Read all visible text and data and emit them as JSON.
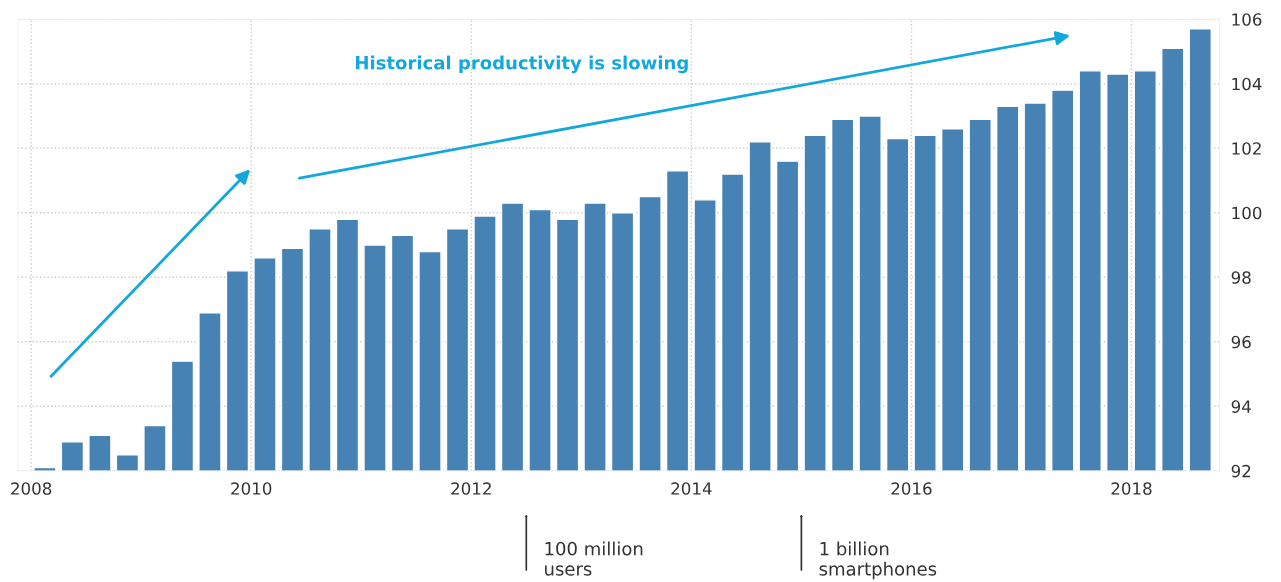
{
  "chart_data": {
    "type": "bar",
    "x": [
      2008.125,
      2008.375,
      2008.625,
      2008.875,
      2009.125,
      2009.375,
      2009.625,
      2009.875,
      2010.125,
      2010.375,
      2010.625,
      2010.875,
      2011.125,
      2011.375,
      2011.625,
      2011.875,
      2012.125,
      2012.375,
      2012.625,
      2012.875,
      2013.125,
      2013.375,
      2013.625,
      2013.875,
      2014.125,
      2014.375,
      2014.625,
      2014.875,
      2015.125,
      2015.375,
      2015.625,
      2015.875,
      2016.125,
      2016.375,
      2016.625,
      2016.875,
      2017.125,
      2017.375,
      2017.625,
      2017.875,
      2018.125,
      2018.375,
      2018.625
    ],
    "values": [
      92.1,
      92.9,
      93.1,
      92.5,
      93.4,
      95.4,
      96.9,
      98.2,
      98.6,
      98.9,
      99.5,
      99.8,
      99.0,
      99.3,
      98.8,
      99.5,
      99.9,
      100.3,
      100.1,
      99.8,
      100.3,
      100.0,
      100.5,
      101.3,
      100.4,
      101.2,
      102.2,
      101.6,
      102.4,
      102.9,
      103.0,
      102.3,
      102.4,
      102.6,
      102.9,
      103.3,
      103.4,
      103.8,
      104.4,
      104.3,
      104.4,
      105.1,
      105.7
    ],
    "color": "#4682b4",
    "xlim": [
      2007.88,
      2018.8
    ],
    "xticks": [
      2008,
      2010,
      2012,
      2014,
      2016,
      2018
    ],
    "ylim": [
      92,
      106
    ],
    "yticks": [
      92,
      94,
      96,
      98,
      100,
      102,
      104,
      106
    ],
    "grid": true,
    "annotations": [
      "Historical productivity is slowing",
      {
        "text": "100 million\nusers",
        "x": 2012.5
      },
      {
        "text": "1 billion\nsmartphones",
        "x": 2015.0
      }
    ]
  }
}
